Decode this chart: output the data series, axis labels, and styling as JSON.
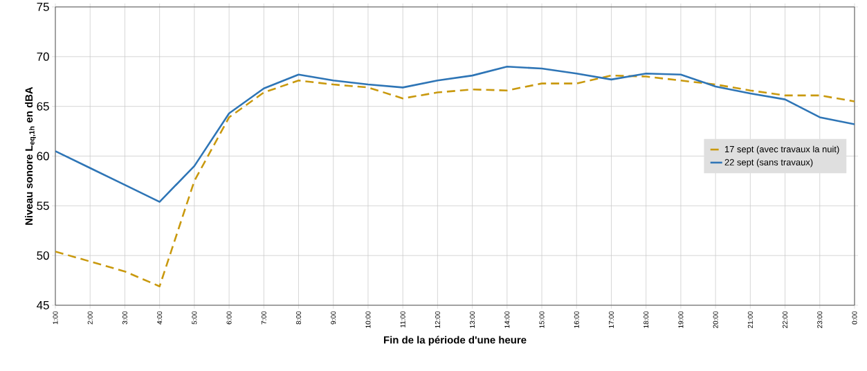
{
  "chart_data": {
    "type": "line",
    "xlabel": "Fin de la période d'une heure",
    "ylabel": "Niveau sonore L$_{eq,1h}$ en dBA",
    "categories": [
      "1:00",
      "2:00",
      "3:00",
      "4:00",
      "5:00",
      "6:00",
      "7:00",
      "8:00",
      "9:00",
      "10:00",
      "11:00",
      "12:00",
      "13:00",
      "14:00",
      "15:00",
      "16:00",
      "17:00",
      "18:00",
      "19:00",
      "20:00",
      "21:00",
      "22:00",
      "23:00",
      "0:00"
    ],
    "series": [
      {
        "name": "17 sept (avec travaux la nuit)",
        "color": "#c9990e",
        "line_style": "dashed",
        "values": [
          50.4,
          49.4,
          48.4,
          46.9,
          57.5,
          63.9,
          66.4,
          67.6,
          67.2,
          66.9,
          65.8,
          66.4,
          66.7,
          66.6,
          67.3,
          67.3,
          68.1,
          68.0,
          67.6,
          67.2,
          66.6,
          66.1,
          66.1,
          65.5
        ]
      },
      {
        "name": "22 sept (sans travaux)",
        "color": "#2e75b6",
        "line_style": "solid",
        "values": [
          60.5,
          58.8,
          57.1,
          55.4,
          59.0,
          64.3,
          66.8,
          68.2,
          67.6,
          67.2,
          66.9,
          67.6,
          68.1,
          69.0,
          68.8,
          68.3,
          67.7,
          68.3,
          68.2,
          67.0,
          66.3,
          65.7,
          63.9,
          63.2
        ]
      }
    ],
    "ylim": [
      45,
      75
    ],
    "yticks": [
      45,
      50,
      55,
      60,
      65,
      70,
      75
    ],
    "grid": true,
    "legend": "right",
    "marker": "none"
  }
}
